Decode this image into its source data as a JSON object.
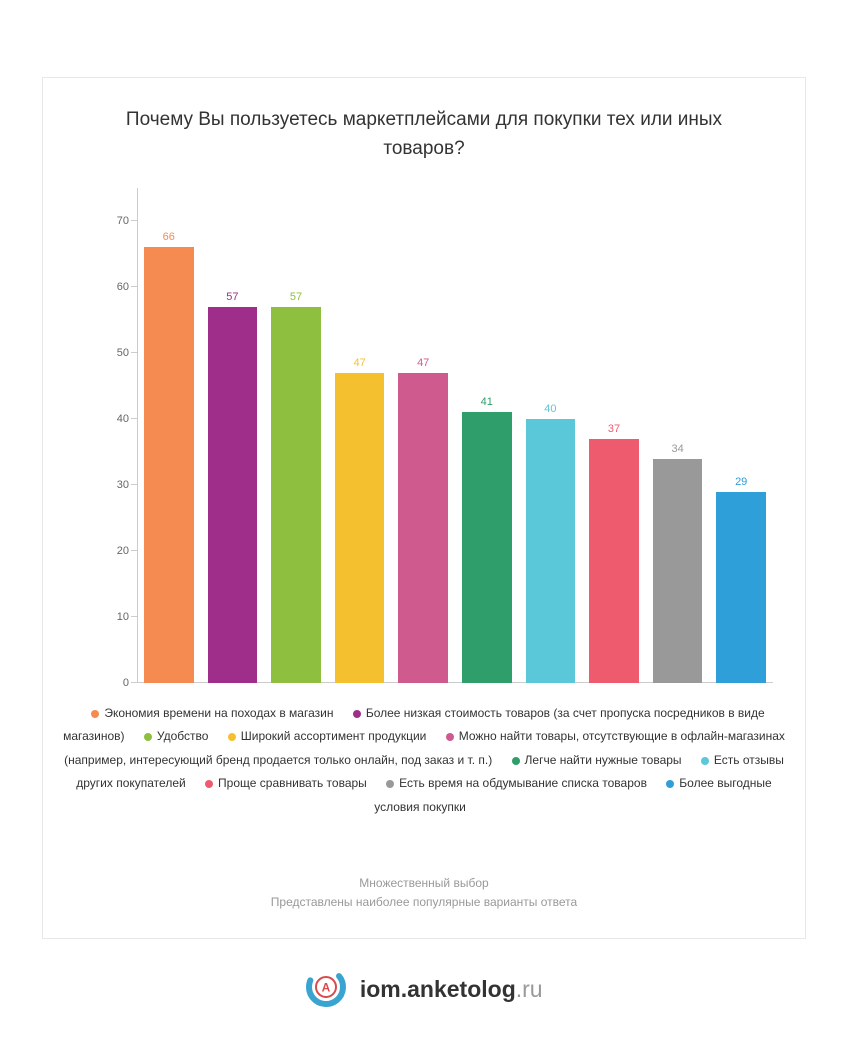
{
  "chart": {
    "type": "bar",
    "title": "Почему Вы пользуетесь маркетплейсами для покупки тех или иных товаров?",
    "title_fontsize": 19,
    "title_color": "#333333",
    "ylim": [
      0,
      75
    ],
    "ytick_step": 10,
    "ytick_labels": [
      "0",
      "10",
      "20",
      "30",
      "40",
      "50",
      "60",
      "70"
    ],
    "axis_color": "#cccccc",
    "ylabel_color": "#666666",
    "ylabel_fontsize": 11,
    "background_color": "#ffffff",
    "border_color": "#e8e8e8",
    "bar_width_ratio": 0.78,
    "bar_label_fontsize": 11,
    "series": [
      {
        "label": "Экономия времени на походах в магазин",
        "value": 66,
        "color": "#f58b51"
      },
      {
        "label": "Более низкая стоимость товаров (за счет пропуска посредников в виде магазинов)",
        "value": 57,
        "color": "#9e2e8a"
      },
      {
        "label": "Удобство",
        "value": 57,
        "color": "#8fbf3e"
      },
      {
        "label": "Широкий ассортимент продукции",
        "value": 47,
        "color": "#f5c030"
      },
      {
        "label": "Можно найти товары, отсутствующие в офлайн-магазинах (например, интересующий бренд продается только онлайн, под заказ и т. п.)",
        "value": 47,
        "color": "#cf5a8e"
      },
      {
        "label": "Легче найти нужные товары",
        "value": 41,
        "color": "#2f9e6a"
      },
      {
        "label": "Есть отзывы других покупателей",
        "value": 40,
        "color": "#5ac8d8"
      },
      {
        "label": "Проще сравнивать товары",
        "value": 37,
        "color": "#ef5b6e"
      },
      {
        "label": "Есть время на обдумывание списка товаров",
        "value": 34,
        "color": "#999999"
      },
      {
        "label": "Более выгодные условия покупки",
        "value": 29,
        "color": "#2e9fd8"
      }
    ],
    "legend_fontsize": 12,
    "legend_color": "#333333",
    "footnote_line1": "Множественный выбор",
    "footnote_line2": "Представлены наиболее популярные варианты ответа",
    "footnote_color": "#999999",
    "footnote_fontsize": 12
  },
  "logo": {
    "text_main": "iom.anketolog",
    "text_domain": ".ru",
    "circle_color": "#3aa4d1",
    "badge_bg": "#ffffff",
    "badge_border": "#d94b4b",
    "badge_letter": "А",
    "badge_letter_color": "#d94b4b",
    "main_color": "#333333",
    "domain_color": "#999999"
  }
}
